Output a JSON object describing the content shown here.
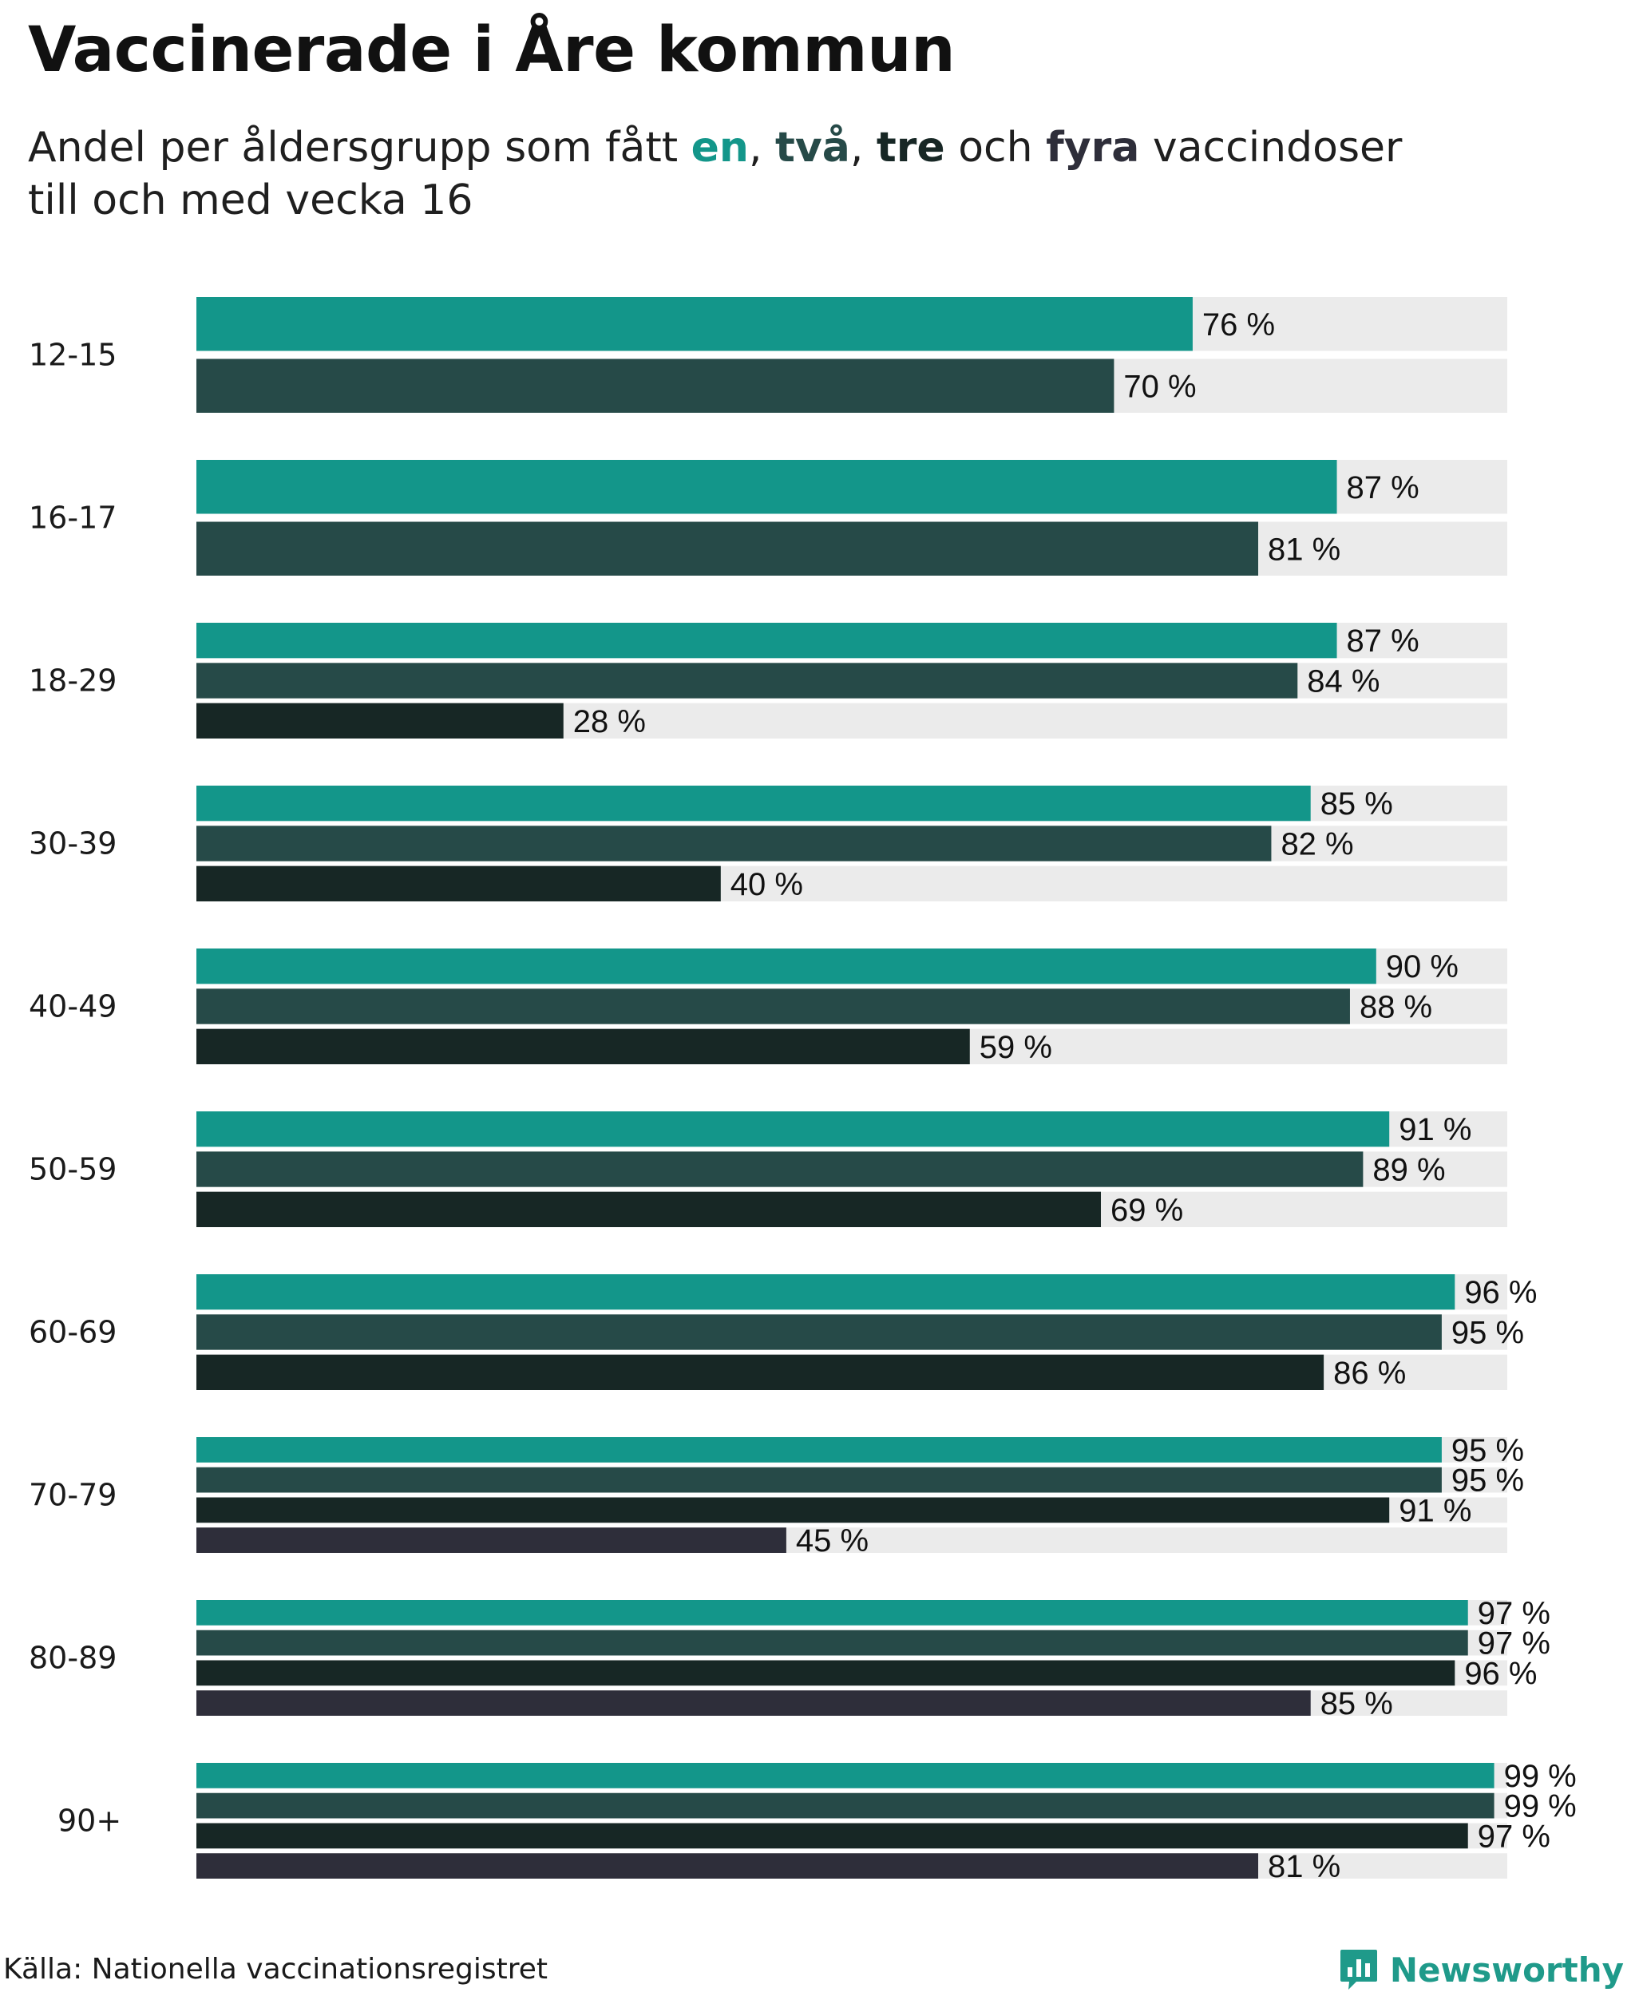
{
  "title": "Vaccinerade i Åre kommun",
  "subtitle": {
    "prefix": "Andel per åldersgrupp som fått ",
    "k1": "en",
    "sep1": ", ",
    "k2": "två",
    "sep2": ", ",
    "k3": "tre",
    "sep3": " och ",
    "k4": "fyra",
    "suffix": " vaccindoser",
    "line2": "till och med vecka 16"
  },
  "colors": {
    "dose1": "#13968a",
    "dose2": "#264a48",
    "dose3": "#172725",
    "dose4": "#2e2e3a",
    "track": "#ebebeb"
  },
  "chart_data": {
    "type": "bar",
    "orientation": "horizontal",
    "title": "Vaccinerade i Åre kommun",
    "unit": "%",
    "xlim": [
      0,
      100
    ],
    "grid": false,
    "legend": "none",
    "categories": [
      "12-15",
      "16-17",
      "18-29",
      "30-39",
      "40-49",
      "50-59",
      "60-69",
      "70-79",
      "80-89",
      "90+"
    ],
    "series": [
      {
        "name": "en",
        "values": [
          76,
          87,
          87,
          85,
          90,
          91,
          96,
          95,
          97,
          99
        ]
      },
      {
        "name": "två",
        "values": [
          70,
          81,
          84,
          82,
          88,
          89,
          95,
          95,
          97,
          99
        ]
      },
      {
        "name": "tre",
        "values": [
          null,
          null,
          28,
          40,
          59,
          69,
          86,
          91,
          96,
          97
        ]
      },
      {
        "name": "fyra",
        "values": [
          null,
          null,
          null,
          null,
          null,
          null,
          null,
          45,
          85,
          81
        ]
      }
    ]
  },
  "footer": {
    "source": "Källa: Nationella vaccinationsregistret",
    "brand": "Newsworthy",
    "brand_icon": "bar-chart-icon"
  }
}
